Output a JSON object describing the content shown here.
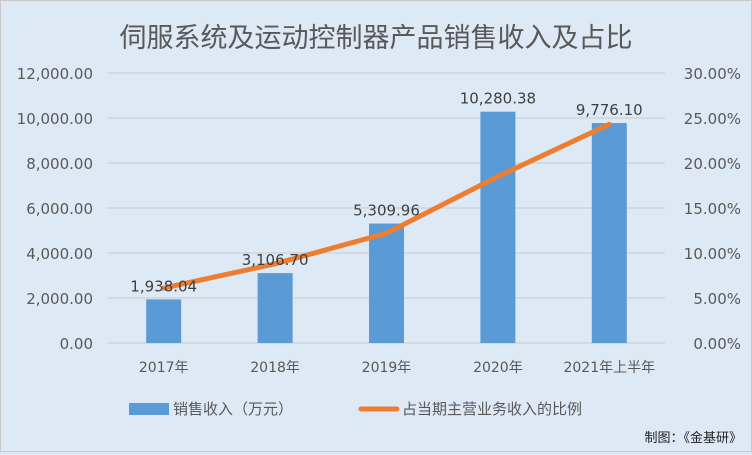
{
  "chart_data": {
    "type": "bar+line",
    "title": "伺服系统及运动控制器产品销售收入及占比",
    "categories": [
      "2017年",
      "2018年",
      "2019年",
      "2020年",
      "2021年上半年"
    ],
    "series": [
      {
        "name": "销售收入（万元）",
        "type": "bar",
        "axis": "left",
        "values": [
          1938.04,
          3106.7,
          5309.96,
          10280.38,
          9776.1
        ],
        "labels": [
          "1,938.04",
          "3,106.70",
          "5,309.96",
          "10,280.38",
          "9,776.10"
        ],
        "color": "#5b9bd5"
      },
      {
        "name": "占当期主营业务收入的比例",
        "type": "line",
        "axis": "right",
        "values": [
          6.1,
          8.8,
          12.2,
          18.5,
          24.3
        ],
        "color": "#ed7d31"
      }
    ],
    "left_axis": {
      "ylim": [
        0,
        12000
      ],
      "ticks": [
        "0.00",
        "2,000.00",
        "4,000.00",
        "6,000.00",
        "8,000.00",
        "10,000.00",
        "12,000.00"
      ]
    },
    "right_axis": {
      "ylim": [
        0,
        30
      ],
      "ticks": [
        "0.00%",
        "5.00%",
        "10.00%",
        "15.00%",
        "20.00%",
        "25.00%",
        "30.00%"
      ]
    },
    "grid": true,
    "legend": "bottom",
    "source": "制图：《金基研》"
  }
}
